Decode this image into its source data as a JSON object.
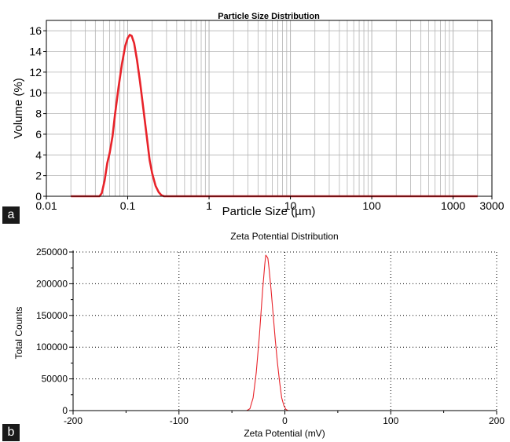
{
  "panels": [
    {
      "letter": "a"
    },
    {
      "letter": "b"
    }
  ],
  "colors": {
    "curve": "#e8232a",
    "grid_a": "#b4b4b4",
    "grid_b": "#000000",
    "axis": "#000000"
  },
  "chart_data": [
    {
      "type": "line",
      "title": "Particle Size Distribution",
      "xlabel": "Particle Size (µm)",
      "ylabel": "Volume (%)",
      "x_scale": "log",
      "xlim": [
        0.01,
        3000
      ],
      "ylim": [
        0,
        17
      ],
      "x_ticks": [
        0.01,
        0.1,
        1,
        10,
        100,
        1000,
        3000
      ],
      "x_tick_labels": [
        "0.01",
        "0.1",
        "1",
        "10",
        "100",
        "1000",
        "3000"
      ],
      "y_ticks": [
        0,
        2,
        4,
        6,
        8,
        10,
        12,
        14,
        16
      ],
      "y_tick_labels": [
        "0",
        "2",
        "4",
        "6",
        "8",
        "10",
        "12",
        "14",
        "16"
      ],
      "grid": true,
      "series": [
        {
          "x": [
            0.02,
            0.03,
            0.045,
            0.048,
            0.052,
            0.056,
            0.06,
            0.065,
            0.07,
            0.077,
            0.085,
            0.093,
            0.1,
            0.106,
            0.112,
            0.12,
            0.13,
            0.142,
            0.155,
            0.17,
            0.186,
            0.2,
            0.22,
            0.24,
            0.26,
            0.28,
            0.3,
            1,
            10,
            100,
            1000,
            2000
          ],
          "y": [
            0,
            0,
            0,
            0.3,
            1.5,
            3.2,
            4.2,
            5.8,
            8.0,
            10.5,
            12.8,
            14.5,
            15.3,
            15.6,
            15.5,
            14.8,
            13.2,
            11.0,
            8.6,
            6.0,
            3.5,
            2.2,
            1.0,
            0.4,
            0.1,
            0,
            0,
            0,
            0,
            0,
            0,
            0
          ]
        }
      ]
    },
    {
      "type": "line",
      "title": "Zeta Potential Distribution",
      "xlabel": "Zeta Potential (mV)",
      "ylabel": "Total Counts",
      "xlim": [
        -200,
        200
      ],
      "ylim": [
        0,
        250000
      ],
      "x_ticks": [
        -200,
        -100,
        0,
        100,
        200
      ],
      "x_tick_labels": [
        "-200",
        "-100",
        "0",
        "100",
        "200"
      ],
      "y_ticks": [
        0,
        50000,
        100000,
        150000,
        200000,
        250000
      ],
      "y_tick_labels": [
        "0",
        "50000",
        "100000",
        "150000",
        "200000",
        "250000"
      ],
      "grid": true,
      "series": [
        {
          "x": [
            -150,
            -50,
            -36,
            -33,
            -30,
            -27,
            -24,
            -21,
            -19,
            -18,
            -17,
            -16,
            -15,
            -13,
            -11,
            -9,
            -7,
            -5,
            -3,
            -1,
            1,
            3,
            50,
            150
          ],
          "y": [
            0,
            0,
            0,
            3000,
            20000,
            60000,
            120000,
            190000,
            230000,
            245000,
            243000,
            240000,
            225000,
            190000,
            150000,
            110000,
            75000,
            45000,
            20000,
            8000,
            2000,
            0,
            0,
            0
          ]
        }
      ]
    }
  ]
}
